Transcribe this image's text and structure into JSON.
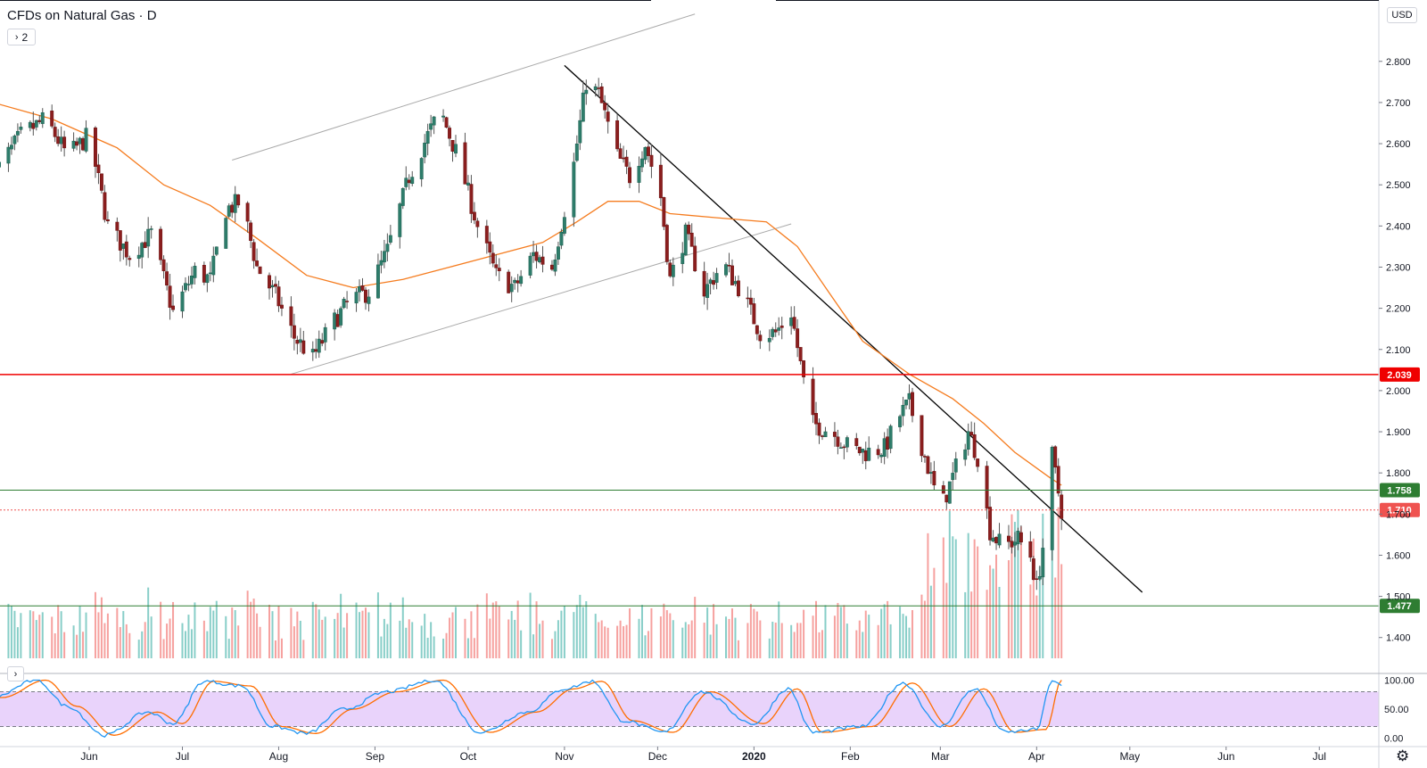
{
  "header": {
    "title": "CFDs on Natural Gas · D",
    "legend_chevron": "›",
    "legend_count": "2",
    "currency": "USD",
    "osc_chevron": "›",
    "settings_icon": "gear-icon"
  },
  "colors": {
    "up": "#26a69a",
    "down": "#ef5350",
    "ma": "#f57c1f",
    "resistance": "#ef0000",
    "support": "#2e7d32",
    "last_price": "#ef5350",
    "stoch_k": "#2196f3",
    "stoch_d": "#ff6d00",
    "stoch_band": "#e1c4f9"
  },
  "chart_data": {
    "type": "candlestick",
    "title": "CFDs on Natural Gas · D",
    "currency": "USD",
    "price_axis": {
      "ticks": [
        "1.400",
        "1.500",
        "1.600",
        "1.700",
        "1.800",
        "1.900",
        "2.000",
        "2.100",
        "2.200",
        "2.300",
        "2.400",
        "2.500",
        "2.600",
        "2.700",
        "2.800"
      ],
      "range": [
        1.35,
        2.85
      ]
    },
    "time_axis": {
      "labels": [
        {
          "label": "Jun",
          "date": "2019-06-01"
        },
        {
          "label": "Jul",
          "date": "2019-07-01"
        },
        {
          "label": "Aug",
          "date": "2019-08-01"
        },
        {
          "label": "Sep",
          "date": "2019-09-01"
        },
        {
          "label": "Oct",
          "date": "2019-10-01"
        },
        {
          "label": "Nov",
          "date": "2019-11-01"
        },
        {
          "label": "Dec",
          "date": "2019-12-01"
        },
        {
          "label": "2020",
          "date": "2020-01-01"
        },
        {
          "label": "Feb",
          "date": "2020-02-01"
        },
        {
          "label": "Mar",
          "date": "2020-03-01"
        },
        {
          "label": "Apr",
          "date": "2020-04-01"
        },
        {
          "label": "May",
          "date": "2020-05-01"
        },
        {
          "label": "Jun",
          "date": "2020-06-01"
        },
        {
          "label": "Jul",
          "date": "2020-07-01"
        }
      ]
    },
    "horizontal_levels": [
      {
        "name": "resistance",
        "value": 2.039,
        "label": "2.039",
        "color": "#ef0000",
        "style": "solid"
      },
      {
        "name": "support-upper",
        "value": 1.758,
        "label": "1.758",
        "color": "#2e7d32",
        "style": "solid"
      },
      {
        "name": "last-price",
        "value": 1.71,
        "label": "1.710",
        "color": "#ef5350",
        "style": "dotted"
      },
      {
        "name": "support-lower",
        "value": 1.477,
        "label": "1.477",
        "color": "#2e7d32",
        "style": "solid"
      }
    ],
    "trendlines": [
      {
        "name": "channel-upper",
        "from": {
          "date": "2019-07-17",
          "price": 2.56
        },
        "to": {
          "date": "2019-12-13",
          "price": 2.915
        },
        "color": "#aaaaaa"
      },
      {
        "name": "channel-lower",
        "from": {
          "date": "2019-08-05",
          "price": 2.04
        },
        "to": {
          "date": "2020-01-13",
          "price": 2.405
        },
        "color": "#aaaaaa"
      },
      {
        "name": "downtrend",
        "from": {
          "date": "2019-11-01",
          "price": 2.79
        },
        "to": {
          "date": "2020-05-05",
          "price": 1.51
        },
        "color": "#000000"
      }
    ],
    "moving_average": {
      "color": "#f57c1f",
      "points": [
        {
          "date": "2019-05-01",
          "price": 2.7
        },
        {
          "date": "2019-05-20",
          "price": 2.66
        },
        {
          "date": "2019-06-10",
          "price": 2.59
        },
        {
          "date": "2019-06-25",
          "price": 2.5
        },
        {
          "date": "2019-07-10",
          "price": 2.45
        },
        {
          "date": "2019-07-25",
          "price": 2.37
        },
        {
          "date": "2019-08-10",
          "price": 2.28
        },
        {
          "date": "2019-08-25",
          "price": 2.25
        },
        {
          "date": "2019-09-10",
          "price": 2.27
        },
        {
          "date": "2019-09-25",
          "price": 2.3
        },
        {
          "date": "2019-10-10",
          "price": 2.33
        },
        {
          "date": "2019-10-25",
          "price": 2.36
        },
        {
          "date": "2019-11-05",
          "price": 2.41
        },
        {
          "date": "2019-11-15",
          "price": 2.46
        },
        {
          "date": "2019-11-25",
          "price": 2.46
        },
        {
          "date": "2019-12-05",
          "price": 2.43
        },
        {
          "date": "2019-12-20",
          "price": 2.42
        },
        {
          "date": "2020-01-05",
          "price": 2.41
        },
        {
          "date": "2020-01-15",
          "price": 2.35
        },
        {
          "date": "2020-01-25",
          "price": 2.24
        },
        {
          "date": "2020-02-05",
          "price": 2.12
        },
        {
          "date": "2020-02-20",
          "price": 2.04
        },
        {
          "date": "2020-03-05",
          "price": 1.98
        },
        {
          "date": "2020-03-15",
          "price": 1.92
        },
        {
          "date": "2020-03-25",
          "price": 1.85
        },
        {
          "date": "2020-04-05",
          "price": 1.79
        },
        {
          "date": "2020-04-09",
          "price": 1.77
        }
      ]
    },
    "price_path": [
      {
        "date": "2019-05-01",
        "price": 2.52
      },
      {
        "date": "2019-05-10",
        "price": 2.62
      },
      {
        "date": "2019-05-18",
        "price": 2.66
      },
      {
        "date": "2019-05-25",
        "price": 2.57
      },
      {
        "date": "2019-06-01",
        "price": 2.62
      },
      {
        "date": "2019-06-07",
        "price": 2.4
      },
      {
        "date": "2019-06-14",
        "price": 2.33
      },
      {
        "date": "2019-06-21",
        "price": 2.38
      },
      {
        "date": "2019-06-28",
        "price": 2.19
      },
      {
        "date": "2019-07-05",
        "price": 2.29
      },
      {
        "date": "2019-07-10",
        "price": 2.27
      },
      {
        "date": "2019-07-15",
        "price": 2.44
      },
      {
        "date": "2019-07-20",
        "price": 2.46
      },
      {
        "date": "2019-07-25",
        "price": 2.3
      },
      {
        "date": "2019-07-31",
        "price": 2.23
      },
      {
        "date": "2019-08-06",
        "price": 2.13
      },
      {
        "date": "2019-08-12",
        "price": 2.08
      },
      {
        "date": "2019-08-18",
        "price": 2.16
      },
      {
        "date": "2019-08-24",
        "price": 2.22
      },
      {
        "date": "2019-08-30",
        "price": 2.24
      },
      {
        "date": "2019-09-05",
        "price": 2.34
      },
      {
        "date": "2019-09-12",
        "price": 2.52
      },
      {
        "date": "2019-09-18",
        "price": 2.62
      },
      {
        "date": "2019-09-22",
        "price": 2.68
      },
      {
        "date": "2019-09-28",
        "price": 2.56
      },
      {
        "date": "2019-10-04",
        "price": 2.4
      },
      {
        "date": "2019-10-10",
        "price": 2.28
      },
      {
        "date": "2019-10-16",
        "price": 2.25
      },
      {
        "date": "2019-10-22",
        "price": 2.33
      },
      {
        "date": "2019-10-28",
        "price": 2.3
      },
      {
        "date": "2019-11-01",
        "price": 2.44
      },
      {
        "date": "2019-11-04",
        "price": 2.55
      },
      {
        "date": "2019-11-08",
        "price": 2.75
      },
      {
        "date": "2019-11-12",
        "price": 2.72
      },
      {
        "date": "2019-11-18",
        "price": 2.57
      },
      {
        "date": "2019-11-22",
        "price": 2.52
      },
      {
        "date": "2019-11-27",
        "price": 2.6
      },
      {
        "date": "2019-12-02",
        "price": 2.47
      },
      {
        "date": "2019-12-05",
        "price": 2.27
      },
      {
        "date": "2019-12-10",
        "price": 2.38
      },
      {
        "date": "2019-12-16",
        "price": 2.24
      },
      {
        "date": "2019-12-22",
        "price": 2.31
      },
      {
        "date": "2019-12-28",
        "price": 2.24
      },
      {
        "date": "2020-01-03",
        "price": 2.14
      },
      {
        "date": "2020-01-08",
        "price": 2.14
      },
      {
        "date": "2020-01-13",
        "price": 2.19
      },
      {
        "date": "2020-01-17",
        "price": 2.02
      },
      {
        "date": "2020-01-20",
        "price": 1.92
      },
      {
        "date": "2020-01-26",
        "price": 1.9
      },
      {
        "date": "2020-02-01",
        "price": 1.86
      },
      {
        "date": "2020-02-06",
        "price": 1.85
      },
      {
        "date": "2020-02-12",
        "price": 1.86
      },
      {
        "date": "2020-02-17",
        "price": 1.94
      },
      {
        "date": "2020-02-20",
        "price": 1.97
      },
      {
        "date": "2020-02-25",
        "price": 1.84
      },
      {
        "date": "2020-03-01",
        "price": 1.71
      },
      {
        "date": "2020-03-05",
        "price": 1.79
      },
      {
        "date": "2020-03-10",
        "price": 1.9
      },
      {
        "date": "2020-03-13",
        "price": 1.84
      },
      {
        "date": "2020-03-17",
        "price": 1.66
      },
      {
        "date": "2020-03-21",
        "price": 1.62
      },
      {
        "date": "2020-03-26",
        "price": 1.64
      },
      {
        "date": "2020-03-30",
        "price": 1.6
      },
      {
        "date": "2020-04-01",
        "price": 1.52
      },
      {
        "date": "2020-04-03",
        "price": 1.62
      },
      {
        "date": "2020-04-06",
        "price": 1.84
      },
      {
        "date": "2020-04-09",
        "price": 1.71
      }
    ],
    "volume": {
      "color_up": "#9fd6cf",
      "color_down": "#f4aaa8"
    },
    "oscillator": {
      "type": "stochastic",
      "ticks": [
        "100.00",
        "50.00",
        "0.00"
      ],
      "range": [
        0,
        100
      ],
      "bands": [
        20,
        80
      ],
      "k_path": [
        {
          "date": "2019-05-01",
          "value": 70
        },
        {
          "date": "2019-05-15",
          "value": 100
        },
        {
          "date": "2019-05-25",
          "value": 55
        },
        {
          "date": "2019-06-06",
          "value": 5
        },
        {
          "date": "2019-06-20",
          "value": 45
        },
        {
          "date": "2019-06-28",
          "value": 25
        },
        {
          "date": "2019-07-08",
          "value": 98
        },
        {
          "date": "2019-07-20",
          "value": 90
        },
        {
          "date": "2019-07-30",
          "value": 20
        },
        {
          "date": "2019-08-10",
          "value": 8
        },
        {
          "date": "2019-08-22",
          "value": 50
        },
        {
          "date": "2019-09-05",
          "value": 80
        },
        {
          "date": "2019-09-20",
          "value": 100
        },
        {
          "date": "2019-10-05",
          "value": 10
        },
        {
          "date": "2019-10-20",
          "value": 45
        },
        {
          "date": "2019-11-01",
          "value": 85
        },
        {
          "date": "2019-11-10",
          "value": 98
        },
        {
          "date": "2019-11-20",
          "value": 30
        },
        {
          "date": "2019-12-03",
          "value": 10
        },
        {
          "date": "2019-12-15",
          "value": 80
        },
        {
          "date": "2020-01-01",
          "value": 25
        },
        {
          "date": "2020-01-12",
          "value": 85
        },
        {
          "date": "2020-01-20",
          "value": 10
        },
        {
          "date": "2020-02-05",
          "value": 20
        },
        {
          "date": "2020-02-18",
          "value": 95
        },
        {
          "date": "2020-03-01",
          "value": 20
        },
        {
          "date": "2020-03-12",
          "value": 85
        },
        {
          "date": "2020-03-22",
          "value": 10
        },
        {
          "date": "2020-04-01",
          "value": 15
        },
        {
          "date": "2020-04-06",
          "value": 100
        },
        {
          "date": "2020-04-09",
          "value": 90
        }
      ]
    }
  }
}
